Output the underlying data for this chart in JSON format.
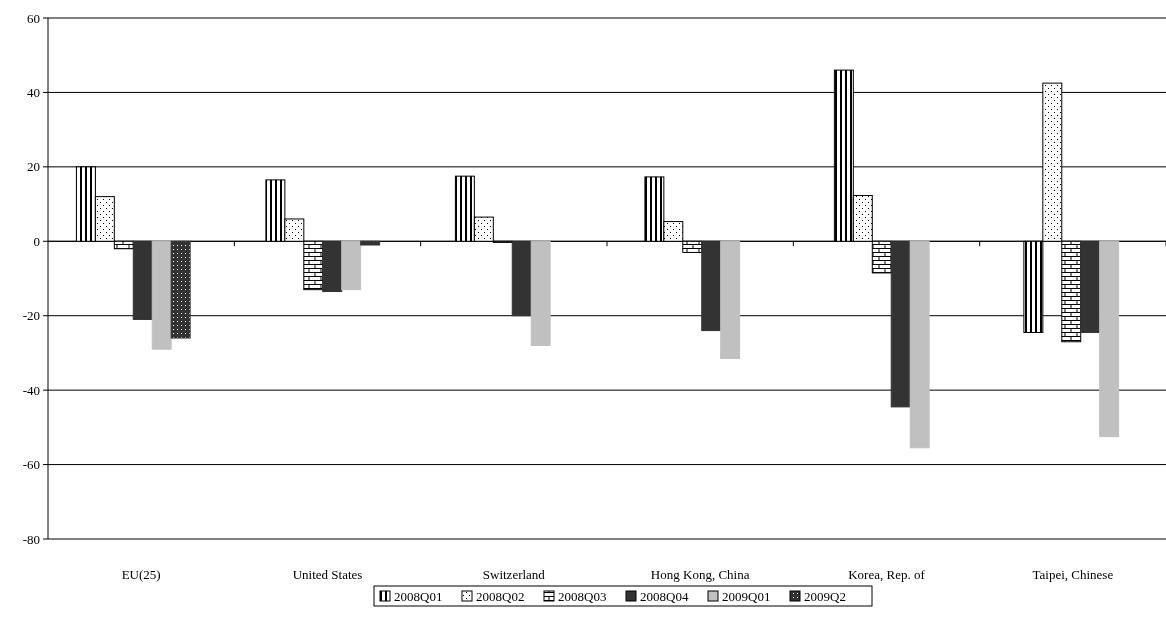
{
  "chart_data": {
    "type": "bar",
    "categories": [
      "EU(25)",
      "United States",
      "Switzerland",
      "Hong Kong, China",
      "Korea, Rep. of",
      "Taipei, Chinese"
    ],
    "series": [
      {
        "name": "2008Q01",
        "color": "#000000",
        "values": [
          20,
          16.5,
          17.5,
          17.3,
          46,
          -24.5
        ]
      },
      {
        "name": "2008Q02",
        "color": "#000000",
        "values": [
          12,
          6,
          6.5,
          5.3,
          12.3,
          42.5
        ]
      },
      {
        "name": "2008Q03",
        "color": "#000000",
        "values": [
          -2,
          -13,
          -0.3,
          -3,
          -8.5,
          -27
        ]
      },
      {
        "name": "2008Q04",
        "color": "#333333",
        "values": [
          -21,
          -13.5,
          -20,
          -24,
          -44.5,
          -24.5
        ]
      },
      {
        "name": "2009Q01",
        "color": "#c0c0c0",
        "values": [
          -29,
          -13,
          -28,
          -31.5,
          -55.5,
          -52.5
        ]
      },
      {
        "name": "2009Q2",
        "color": "#333333",
        "values": [
          -26,
          -1,
          null,
          null,
          null,
          null
        ]
      }
    ],
    "ylim": [
      -80,
      60
    ],
    "yticks": [
      -80,
      -60,
      -40,
      -20,
      0,
      20,
      40,
      60
    ],
    "grid": "y",
    "legend": "bottom"
  }
}
